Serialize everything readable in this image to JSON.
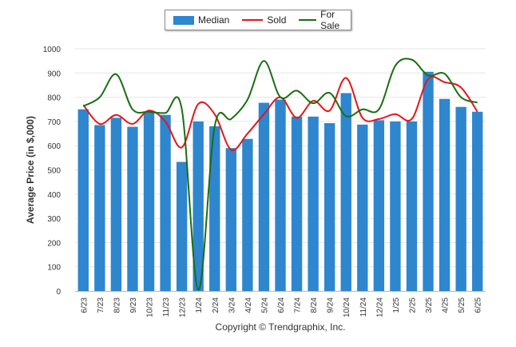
{
  "chart_data": {
    "type": "bar",
    "ylabel": "Average Price (in $,000)",
    "ylim": [
      0,
      1000
    ],
    "yticks": [
      0,
      100,
      200,
      300,
      400,
      500,
      600,
      700,
      800,
      900,
      1000
    ],
    "categories": [
      "6/23",
      "7/23",
      "8/23",
      "9/23",
      "10/23",
      "11/23",
      "12/23",
      "1/24",
      "2/24",
      "3/24",
      "4/24",
      "5/24",
      "6/24",
      "7/24",
      "8/24",
      "9/24",
      "10/24",
      "11/24",
      "12/24",
      "1/25",
      "2/25",
      "3/25",
      "4/25",
      "5/25",
      "6/25"
    ],
    "series": [
      {
        "name": "Median",
        "kind": "bar",
        "color": "#2e86cf",
        "values": [
          750,
          685,
          715,
          678,
          740,
          727,
          533,
          700,
          680,
          590,
          628,
          777,
          790,
          720,
          720,
          693,
          817,
          687,
          705,
          700,
          700,
          905,
          793,
          760,
          740
        ]
      },
      {
        "name": "Sold",
        "kind": "line",
        "color": "#e8141a",
        "values": [
          768,
          690,
          727,
          690,
          745,
          700,
          593,
          772,
          730,
          583,
          650,
          730,
          800,
          715,
          785,
          745,
          880,
          715,
          710,
          730,
          710,
          875,
          862,
          840,
          740
        ]
      },
      {
        "name": "For Sale",
        "kind": "line",
        "color": "#1a6e12",
        "values": [
          763,
          800,
          895,
          750,
          740,
          735,
          750,
          5,
          680,
          710,
          790,
          950,
          800,
          827,
          775,
          818,
          722,
          750,
          750,
          930,
          955,
          890,
          897,
          800,
          778
        ]
      }
    ],
    "legend": "top-center",
    "grid": true
  },
  "footer": {
    "copyright": "Copyright © Trendgraphix, Inc."
  }
}
